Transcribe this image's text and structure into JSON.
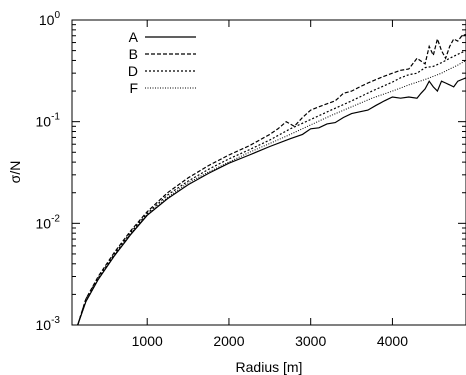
{
  "chart_data": {
    "type": "line",
    "title": "",
    "xlabel": "Radius [m]",
    "ylabel": "σ/N",
    "xlim": [
      80,
      4900
    ],
    "ylim": [
      0.001,
      1
    ],
    "yscale": "log",
    "xticks": [
      1000,
      2000,
      3000,
      4000
    ],
    "xtick_labels": [
      "1000",
      "2000",
      "3000",
      "4000"
    ],
    "yticks": [
      0.001,
      0.01,
      0.1,
      1
    ],
    "ytick_labels": [
      {
        "base": "10",
        "exp": "-3"
      },
      {
        "base": "10",
        "exp": "-2"
      },
      {
        "base": "10",
        "exp": "-1"
      },
      {
        "base": "10",
        "exp": "0"
      }
    ],
    "legend_position": "top-left",
    "grid": false,
    "series": [
      {
        "name": "A",
        "style": "solid",
        "points": [
          [
            150,
            0.001
          ],
          [
            250,
            0.0017
          ],
          [
            400,
            0.0028
          ],
          [
            600,
            0.0048
          ],
          [
            800,
            0.0078
          ],
          [
            1000,
            0.012
          ],
          [
            1250,
            0.0175
          ],
          [
            1500,
            0.024
          ],
          [
            1750,
            0.031
          ],
          [
            2000,
            0.039
          ],
          [
            2250,
            0.047
          ],
          [
            2500,
            0.057
          ],
          [
            2750,
            0.068
          ],
          [
            2900,
            0.075
          ],
          [
            3000,
            0.085
          ],
          [
            3100,
            0.087
          ],
          [
            3200,
            0.095
          ],
          [
            3300,
            0.098
          ],
          [
            3400,
            0.11
          ],
          [
            3500,
            0.12
          ],
          [
            3600,
            0.125
          ],
          [
            3700,
            0.13
          ],
          [
            3800,
            0.145
          ],
          [
            3900,
            0.16
          ],
          [
            4000,
            0.175
          ],
          [
            4100,
            0.17
          ],
          [
            4200,
            0.175
          ],
          [
            4300,
            0.17
          ],
          [
            4350,
            0.19
          ],
          [
            4400,
            0.21
          ],
          [
            4450,
            0.25
          ],
          [
            4500,
            0.22
          ],
          [
            4550,
            0.2
          ],
          [
            4600,
            0.25
          ],
          [
            4650,
            0.24
          ],
          [
            4700,
            0.23
          ],
          [
            4750,
            0.22
          ],
          [
            4800,
            0.25
          ],
          [
            4850,
            0.26
          ],
          [
            4900,
            0.27
          ]
        ]
      },
      {
        "name": "B",
        "style": "dashed",
        "points": [
          [
            150,
            0.001
          ],
          [
            250,
            0.0018
          ],
          [
            400,
            0.003
          ],
          [
            600,
            0.0052
          ],
          [
            800,
            0.0085
          ],
          [
            1000,
            0.013
          ],
          [
            1250,
            0.02
          ],
          [
            1500,
            0.028
          ],
          [
            1750,
            0.037
          ],
          [
            2000,
            0.047
          ],
          [
            2250,
            0.058
          ],
          [
            2500,
            0.075
          ],
          [
            2600,
            0.085
          ],
          [
            2700,
            0.1
          ],
          [
            2800,
            0.09
          ],
          [
            2900,
            0.11
          ],
          [
            3000,
            0.13
          ],
          [
            3100,
            0.14
          ],
          [
            3200,
            0.15
          ],
          [
            3300,
            0.16
          ],
          [
            3400,
            0.19
          ],
          [
            3500,
            0.2
          ],
          [
            3600,
            0.22
          ],
          [
            3700,
            0.24
          ],
          [
            3800,
            0.26
          ],
          [
            3900,
            0.28
          ],
          [
            4000,
            0.3
          ],
          [
            4100,
            0.32
          ],
          [
            4200,
            0.33
          ],
          [
            4300,
            0.42
          ],
          [
            4400,
            0.37
          ],
          [
            4450,
            0.55
          ],
          [
            4500,
            0.45
          ],
          [
            4550,
            0.65
          ],
          [
            4600,
            0.5
          ],
          [
            4650,
            0.42
          ],
          [
            4700,
            0.55
          ],
          [
            4750,
            0.65
          ],
          [
            4800,
            0.62
          ],
          [
            4850,
            0.7
          ],
          [
            4900,
            0.72
          ]
        ]
      },
      {
        "name": "D",
        "style": "dotted",
        "points": [
          [
            150,
            0.001
          ],
          [
            250,
            0.0018
          ],
          [
            400,
            0.0029
          ],
          [
            600,
            0.005
          ],
          [
            800,
            0.0082
          ],
          [
            1000,
            0.0125
          ],
          [
            1250,
            0.019
          ],
          [
            1500,
            0.026
          ],
          [
            1750,
            0.034
          ],
          [
            2000,
            0.043
          ],
          [
            2250,
            0.053
          ],
          [
            2500,
            0.066
          ],
          [
            2750,
            0.085
          ],
          [
            3000,
            0.105
          ],
          [
            3250,
            0.13
          ],
          [
            3500,
            0.16
          ],
          [
            3750,
            0.2
          ],
          [
            4000,
            0.245
          ],
          [
            4100,
            0.27
          ],
          [
            4200,
            0.29
          ],
          [
            4300,
            0.3
          ],
          [
            4400,
            0.34
          ],
          [
            4500,
            0.35
          ],
          [
            4600,
            0.38
          ],
          [
            4700,
            0.42
          ],
          [
            4800,
            0.46
          ],
          [
            4900,
            0.5
          ]
        ]
      },
      {
        "name": "F",
        "style": "fine-dotted",
        "points": [
          [
            150,
            0.001
          ],
          [
            250,
            0.0017
          ],
          [
            400,
            0.0028
          ],
          [
            600,
            0.0049
          ],
          [
            800,
            0.008
          ],
          [
            1000,
            0.0122
          ],
          [
            1250,
            0.018
          ],
          [
            1500,
            0.025
          ],
          [
            1750,
            0.032
          ],
          [
            2000,
            0.04
          ],
          [
            2250,
            0.05
          ],
          [
            2500,
            0.061
          ],
          [
            2750,
            0.075
          ],
          [
            3000,
            0.093
          ],
          [
            3250,
            0.115
          ],
          [
            3500,
            0.14
          ],
          [
            3750,
            0.17
          ],
          [
            4000,
            0.2
          ],
          [
            4200,
            0.23
          ],
          [
            4400,
            0.26
          ],
          [
            4600,
            0.3
          ],
          [
            4700,
            0.33
          ],
          [
            4800,
            0.36
          ],
          [
            4900,
            0.4
          ]
        ]
      }
    ]
  }
}
